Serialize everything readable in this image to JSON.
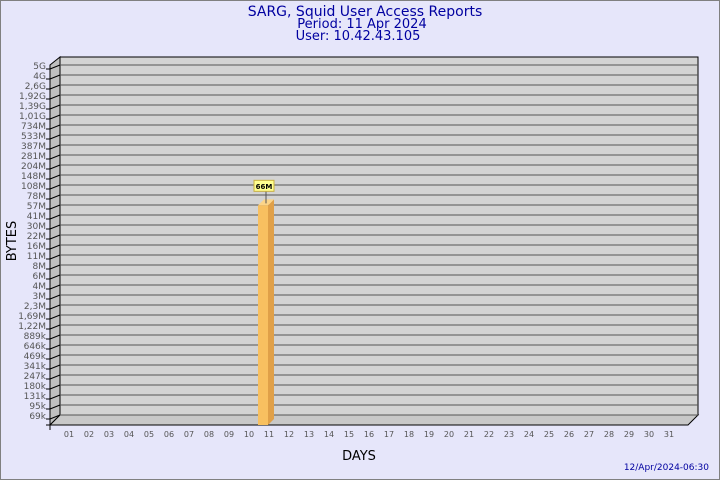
{
  "chart_data": {
    "type": "bar",
    "title": [
      "SARG, Squid User Access Reports",
      "Period: 11 Apr 2024",
      "User: 10.42.43.105"
    ],
    "xlabel": "DAYS",
    "ylabel": "BYTES",
    "yscale": "log",
    "grid": true,
    "categories": [
      "01",
      "02",
      "03",
      "04",
      "05",
      "06",
      "07",
      "08",
      "09",
      "10",
      "11",
      "12",
      "13",
      "14",
      "15",
      "16",
      "17",
      "18",
      "19",
      "20",
      "21",
      "22",
      "23",
      "24",
      "25",
      "26",
      "27",
      "28",
      "29",
      "30",
      "31"
    ],
    "ytick_labels": [
      "5G",
      "4G",
      "2,6G",
      "1,92G",
      "1,39G",
      "1,01G",
      "734M",
      "533M",
      "387M",
      "281M",
      "204M",
      "148M",
      "108M",
      "78M",
      "57M",
      "41M",
      "30M",
      "22M",
      "16M",
      "11M",
      "8M",
      "6M",
      "4M",
      "3M",
      "2,3M",
      "1,69M",
      "1,22M",
      "889k",
      "646k",
      "469k",
      "341k",
      "247k",
      "180k",
      "131k",
      "95k",
      "69k"
    ],
    "series": [
      {
        "values": [
          null,
          null,
          null,
          null,
          null,
          null,
          null,
          null,
          null,
          null,
          66000000,
          null,
          null,
          null,
          null,
          null,
          null,
          null,
          null,
          null,
          null,
          null,
          null,
          null,
          null,
          null,
          null,
          null,
          null,
          null,
          null
        ],
        "data_labels": {
          "11": "66M"
        }
      }
    ],
    "colors": {
      "background": "#e6e6fa",
      "plot": "#d3d3d3",
      "bar": "#f8c060",
      "bar_side": "#e0a048",
      "title": "#0000a0",
      "label_box": "#ffff90"
    }
  },
  "footer": {
    "timestamp": "12/Apr/2024-06:30"
  }
}
